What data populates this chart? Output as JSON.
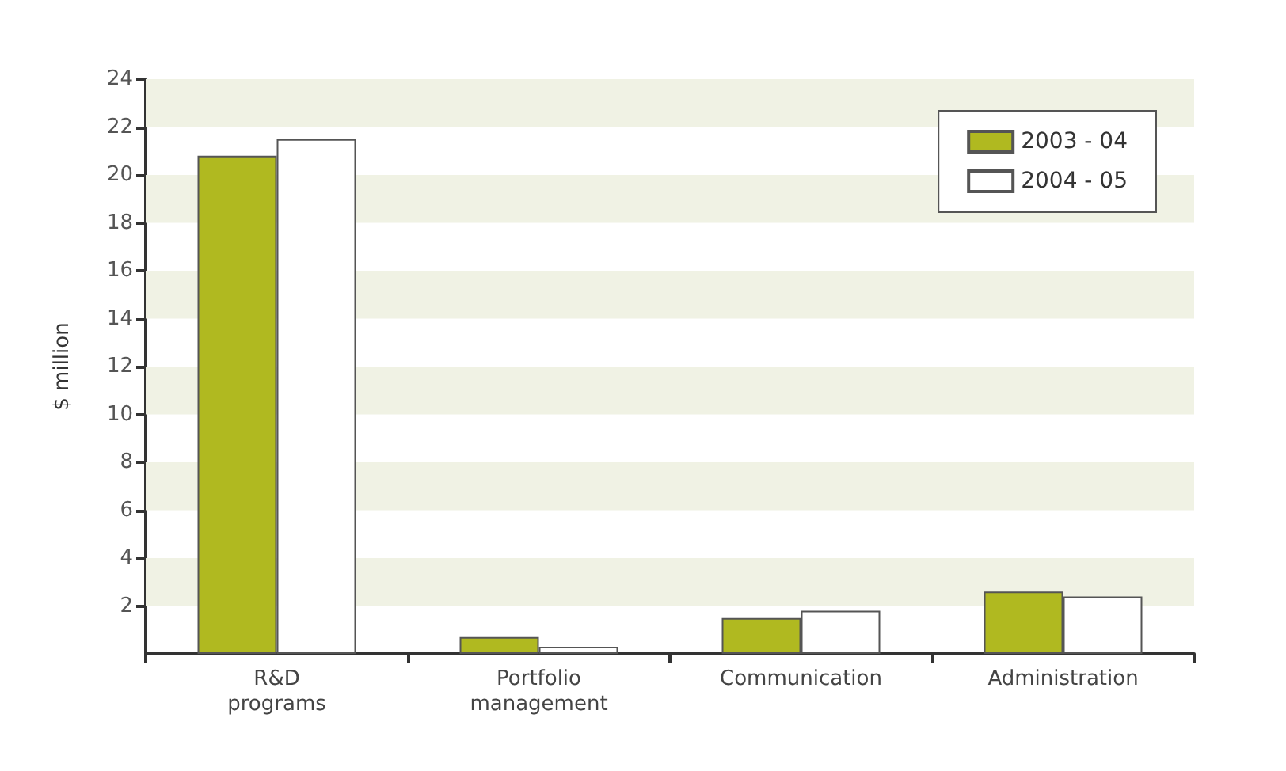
{
  "chart_data": {
    "type": "bar",
    "ylabel": "$ million",
    "categories": [
      "R&D\nprograms",
      "Portfolio\nmanagement",
      "Communication",
      "Administration"
    ],
    "series": [
      {
        "name": "2003 - 04",
        "color": "#b0b920",
        "values": [
          20.8,
          0.7,
          1.5,
          2.6
        ]
      },
      {
        "name": "2004 - 05",
        "color": "#ffffff",
        "values": [
          21.5,
          0.3,
          1.8,
          2.4
        ]
      }
    ],
    "ylim": [
      0,
      24
    ],
    "yticks": [
      2,
      4,
      6,
      8,
      10,
      12,
      14,
      16,
      18,
      20,
      22,
      24
    ],
    "legend": "top right",
    "bands": [
      {
        "axis": "y",
        "from": 2,
        "to": 4,
        "color": "#f0f2e4"
      },
      {
        "axis": "y",
        "from": 6,
        "to": 8,
        "color": "#f0f2e4"
      },
      {
        "axis": "y",
        "from": 10,
        "to": 12,
        "color": "#f0f2e4"
      },
      {
        "axis": "y",
        "from": 14,
        "to": 16,
        "color": "#f0f2e4"
      },
      {
        "axis": "y",
        "from": 18,
        "to": 20,
        "color": "#f0f2e4"
      },
      {
        "axis": "y",
        "from": 22,
        "to": 24,
        "color": "#f0f2e4"
      }
    ]
  }
}
